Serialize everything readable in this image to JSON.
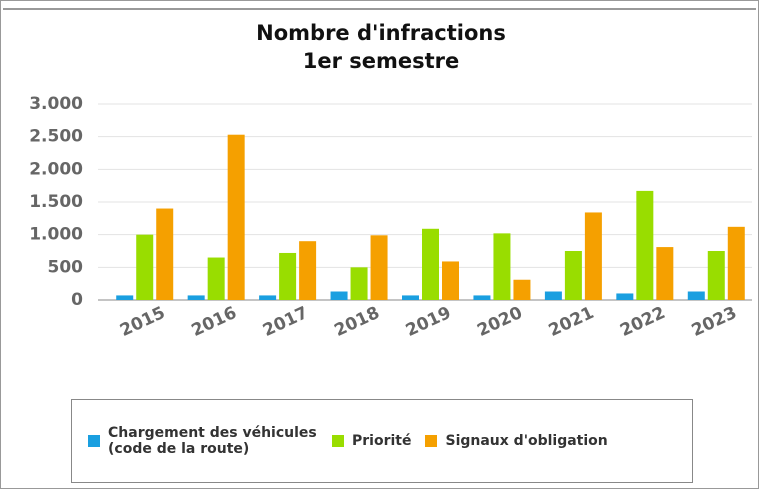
{
  "chart_data": {
    "type": "bar",
    "title": "Nombre d'infractions",
    "subtitle": "1er semestre",
    "categories": [
      "2015",
      "2016",
      "2017",
      "2018",
      "2019",
      "2020",
      "2021",
      "2022",
      "2023"
    ],
    "series": [
      {
        "name": "Chargement des véhicules (code de la route)",
        "color": "#1a9fe0",
        "values": [
          70,
          70,
          70,
          130,
          70,
          70,
          130,
          100,
          130
        ]
      },
      {
        "name": "Priorité",
        "color": "#99dd00",
        "values": [
          1000,
          650,
          720,
          500,
          1090,
          1020,
          750,
          1670,
          750
        ]
      },
      {
        "name": "Signaux d'obligation",
        "color": "#f5a000",
        "values": [
          1400,
          2530,
          900,
          990,
          590,
          310,
          1340,
          810,
          1120
        ]
      }
    ],
    "ylim": [
      0,
      3000
    ],
    "yticks": [
      0,
      500,
      {
        "value": 1000,
        "label": "1.000"
      },
      {
        "value": 1500,
        "label": "1.500"
      },
      {
        "value": 2000,
        "label": "2.000"
      },
      {
        "value": 2500,
        "label": "2.500"
      },
      {
        "value": 3000,
        "label": "3.000"
      }
    ],
    "grid": true
  }
}
